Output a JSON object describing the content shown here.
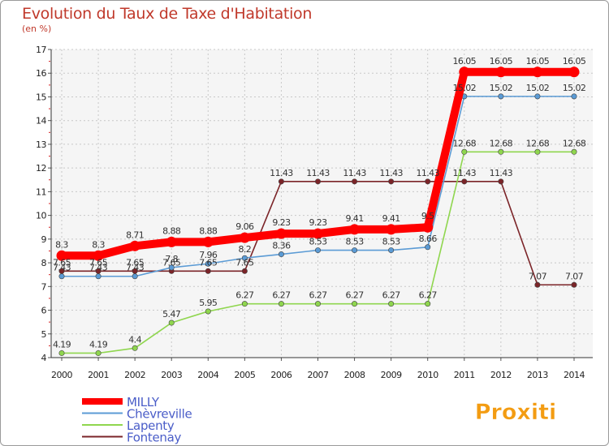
{
  "title": "Evolution du Taux de Taxe d'Habitation",
  "unit": "(en %)",
  "brand": "Proxiti",
  "chart_data": {
    "type": "line",
    "title": "Evolution du Taux de Taxe d'Habitation",
    "ylabel": "(en %)",
    "xlabel": "",
    "ylim": [
      4,
      17
    ],
    "yticks": [
      "4",
      "5",
      "6",
      "7",
      "8",
      "9",
      "10",
      "11",
      "12",
      "13",
      "14",
      "15",
      "16",
      "17"
    ],
    "grid": true,
    "legend_position": "bottom-left",
    "categories": [
      "2000",
      "2001",
      "2002",
      "2003",
      "2004",
      "2005",
      "2006",
      "2007",
      "2008",
      "2009",
      "2010",
      "2011",
      "2012",
      "2013",
      "2014"
    ],
    "series": [
      {
        "name": "MILLY",
        "color": "#ff0000",
        "values": [
          8.3,
          8.3,
          8.71,
          8.88,
          8.88,
          9.06,
          9.23,
          9.23,
          9.41,
          9.41,
          9.5,
          16.05,
          16.05,
          16.05,
          16.05
        ],
        "labels": [
          "8.3",
          "8.3",
          "8.71",
          "8.88",
          "8.88",
          "9.06",
          "9.23",
          "9.23",
          "9.41",
          "9.41",
          "9.5",
          "16.05",
          "16.05",
          "16.05",
          "16.05"
        ]
      },
      {
        "name": "Chèvreville",
        "color": "#5b9bd5",
        "values": [
          7.43,
          7.43,
          7.43,
          7.8,
          7.96,
          8.2,
          8.36,
          8.53,
          8.53,
          8.53,
          8.66,
          15.02,
          15.02,
          15.02,
          15.02
        ],
        "labels": [
          "7.43",
          "7.43",
          "7.43",
          "7.8",
          "7.96",
          "8.2",
          "8.36",
          "8.53",
          "8.53",
          "8.53",
          "8.66",
          "15.02",
          "15.02",
          "15.02",
          "15.02"
        ]
      },
      {
        "name": "Lapenty",
        "color": "#8fd64e",
        "values": [
          4.19,
          4.19,
          4.4,
          5.47,
          5.95,
          6.27,
          6.27,
          6.27,
          6.27,
          6.27,
          6.27,
          12.68,
          12.68,
          12.68,
          12.68
        ],
        "labels": [
          "4.19",
          "4.19",
          "4.4",
          "5.47",
          "5.95",
          "6.27",
          "6.27",
          "6.27",
          "6.27",
          "6.27",
          "6.27",
          "12.68",
          "12.68",
          "12.68",
          "12.68"
        ]
      },
      {
        "name": "Fontenay",
        "color": "#7b2428",
        "values": [
          7.65,
          7.65,
          7.65,
          7.65,
          7.65,
          7.65,
          11.43,
          11.43,
          11.43,
          11.43,
          11.43,
          11.43,
          11.43,
          7.07,
          7.07
        ],
        "labels": [
          "7.65",
          "7.65",
          "7.65",
          "7.65",
          "7.65",
          "7.65",
          "11.43",
          "11.43",
          "11.43",
          "11.43",
          "11.43",
          "11.43",
          "11.43",
          "7.07",
          "7.07"
        ]
      }
    ]
  }
}
